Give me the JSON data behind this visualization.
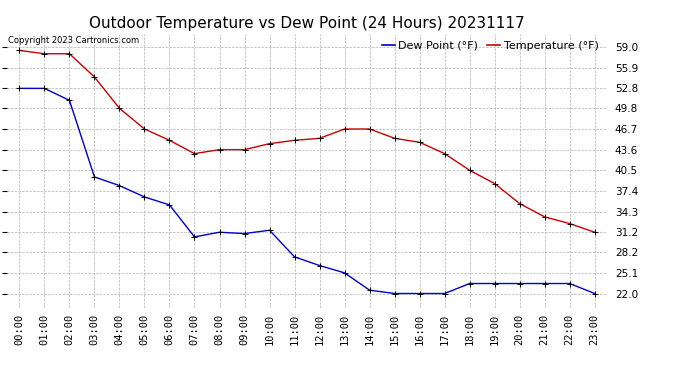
{
  "title": "Outdoor Temperature vs Dew Point (24 Hours) 20231117",
  "copyright": "Copyright 2023 Cartronics.com",
  "legend_dew": "Dew Point (°F)",
  "legend_temp": "Temperature (°F)",
  "hours": [
    "00:00",
    "01:00",
    "02:00",
    "03:00",
    "04:00",
    "05:00",
    "06:00",
    "07:00",
    "08:00",
    "09:00",
    "10:00",
    "11:00",
    "12:00",
    "13:00",
    "14:00",
    "15:00",
    "16:00",
    "17:00",
    "18:00",
    "19:00",
    "20:00",
    "21:00",
    "22:00",
    "23:00"
  ],
  "temperature": [
    58.5,
    58.0,
    58.0,
    54.5,
    49.8,
    46.7,
    45.0,
    43.0,
    43.6,
    43.6,
    44.5,
    45.0,
    45.3,
    46.7,
    46.7,
    45.3,
    44.7,
    43.0,
    40.5,
    38.5,
    35.5,
    33.5,
    32.5,
    31.2
  ],
  "dew_point": [
    52.8,
    52.8,
    51.0,
    39.5,
    38.2,
    36.5,
    35.3,
    30.5,
    31.2,
    31.0,
    31.5,
    27.5,
    26.2,
    25.1,
    22.5,
    22.0,
    22.0,
    22.0,
    23.5,
    23.5,
    23.5,
    23.5,
    23.5,
    22.0
  ],
  "ylim_min": 19.9,
  "ylim_max": 61.0,
  "yticks": [
    22.0,
    25.1,
    28.2,
    31.2,
    34.3,
    37.4,
    40.5,
    43.6,
    46.7,
    49.8,
    52.8,
    55.9,
    59.0
  ],
  "temp_color": "#cc0000",
  "dew_color": "#0000cc",
  "bg_color": "#ffffff",
  "grid_color": "#b0b0b0",
  "title_fontsize": 11,
  "tick_fontsize": 7.5,
  "legend_fontsize": 8
}
